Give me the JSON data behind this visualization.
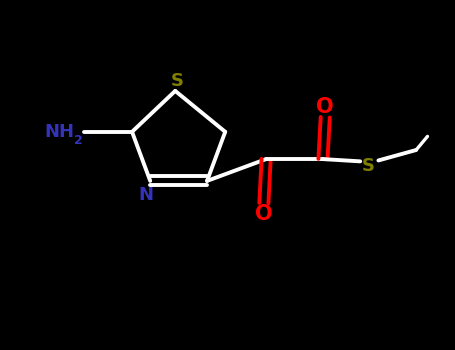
{
  "background_color": "#000000",
  "S_color": "#808000",
  "N_color": "#3333bb",
  "O_color": "#ff0000",
  "bond_color": "#ffffff",
  "line_width": 2.8,
  "figsize": [
    4.55,
    3.5
  ],
  "dpi": 100,
  "xlim": [
    0,
    10
  ],
  "ylim": [
    0,
    7.7
  ]
}
